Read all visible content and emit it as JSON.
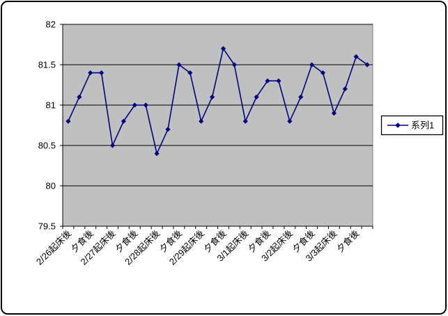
{
  "chart_data": {
    "type": "line",
    "title": "",
    "xlabel": "",
    "ylabel": "",
    "series": [
      {
        "name": "系列1",
        "color": "#000080",
        "marker": "diamond",
        "values": [
          80.8,
          81.1,
          81.4,
          81.4,
          80.5,
          80.8,
          81.0,
          81.0,
          80.4,
          80.7,
          81.5,
          81.4,
          80.8,
          81.1,
          81.7,
          81.5,
          80.8,
          81.1,
          81.3,
          81.3,
          80.8,
          81.1,
          81.5,
          81.4,
          80.9,
          81.2,
          81.6,
          81.5
        ]
      }
    ],
    "x_axis": {
      "tick_labels": [
        "2/26起床後",
        "夕食後",
        "2/27起床後",
        "夕食後",
        "2/28起床後",
        "夕食後",
        "2/29起床後",
        "夕食後",
        "3/1起床後",
        "夕食後",
        "3/2起床後",
        "夕食後",
        "3/3起床後",
        "夕食後"
      ],
      "label_every_nth_point": 2,
      "label_rotation_deg": -45
    },
    "y_axis": {
      "min": 79.5,
      "max": 82,
      "step": 0.5,
      "tick_labels": [
        "82",
        "81.5",
        "81",
        "80.5",
        "80",
        "79.5"
      ]
    },
    "legend": {
      "position": "right",
      "entries": [
        "系列1"
      ]
    },
    "grid": true,
    "colors": {
      "plot_background": "#c0c0c0",
      "plot_border": "#808080",
      "gridline": "#000000",
      "axis": "#000000",
      "series1": "#000080",
      "legend_background": "#ffffff",
      "legend_border": "#000000"
    }
  }
}
